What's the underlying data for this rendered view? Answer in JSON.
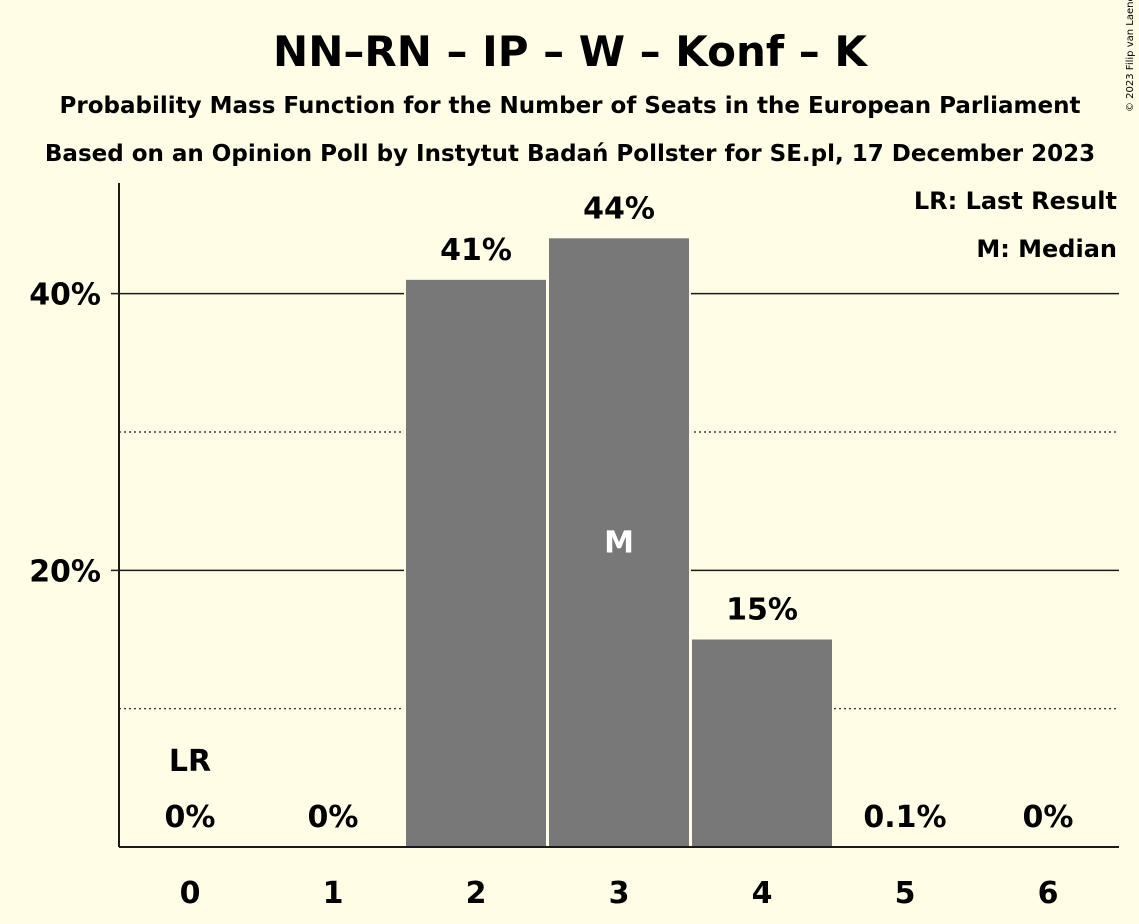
{
  "chart_data": {
    "type": "bar",
    "title": "NN–RN – IP – W – Konf – K",
    "subtitle_1": "Probability Mass Function for the Number of Seats in the European Parliament",
    "subtitle_2": "Based on an Opinion Poll by Instytut Badań Pollster for SE.pl, 17 December 2023",
    "copyright": "© 2023 Filip van Laenen",
    "categories": [
      "0",
      "1",
      "2",
      "3",
      "4",
      "5",
      "6"
    ],
    "values": [
      0,
      0,
      41,
      44,
      15,
      0.1,
      0
    ],
    "value_labels": [
      "0%",
      "0%",
      "41%",
      "44%",
      "15%",
      "0.1%",
      "0%"
    ],
    "ylim": [
      0,
      48
    ],
    "y_ticks": [
      {
        "value": 20,
        "label": "20%"
      },
      {
        "value": 40,
        "label": "40%"
      }
    ],
    "minor_gridlines": [
      10,
      30
    ],
    "last_result": {
      "category": "0",
      "label": "LR"
    },
    "median": {
      "category": "3",
      "label": "M"
    },
    "legend": [
      "LR: Last Result",
      "M: Median"
    ],
    "legend_position": "top-right",
    "bar_color": "#787878"
  }
}
